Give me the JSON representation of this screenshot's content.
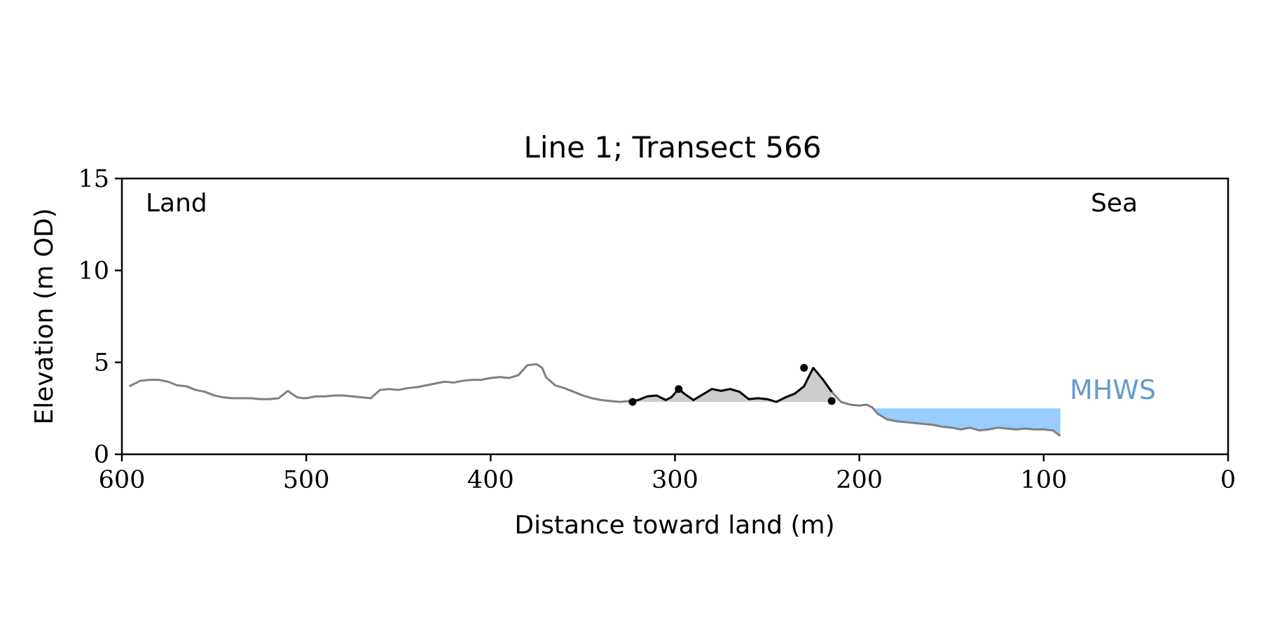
{
  "chart_data": {
    "type": "line",
    "title": "Line 1; Transect 566",
    "xlabel": "Distance toward land (m)",
    "ylabel": "Elevation (m OD)",
    "xlim": [
      600,
      0
    ],
    "ylim": [
      0,
      15
    ],
    "xticks": [
      600,
      500,
      400,
      300,
      200,
      100,
      0
    ],
    "yticks": [
      0,
      5,
      10,
      15
    ],
    "grid": false,
    "annotations": {
      "land": "Land",
      "sea": "Sea",
      "mhws": "MHWS"
    },
    "mhws_level": 2.5,
    "mhws_range": [
      192,
      91
    ],
    "colors": {
      "profile": "#808080",
      "dune": "#000000",
      "dune_fill": "#cccccc",
      "mhws_fill": "#99ccff",
      "mhws_text": "#6699cc"
    },
    "series": [
      {
        "x": [
          596,
          590,
          585,
          580,
          575,
          570,
          565,
          560,
          555,
          550,
          545,
          540,
          535,
          530,
          525,
          520,
          515,
          510,
          505,
          502,
          500,
          495,
          490,
          485,
          480,
          475,
          470,
          465,
          460,
          455,
          450,
          445,
          440,
          435,
          430,
          425,
          420,
          415,
          410,
          405,
          400,
          395,
          390,
          385,
          380,
          375,
          372,
          370,
          365,
          360,
          355,
          350,
          345,
          340,
          335,
          330,
          325,
          323,
          320,
          315,
          310,
          305,
          302,
          298,
          295,
          290,
          285,
          280,
          275,
          270,
          265,
          260,
          255,
          250,
          245,
          240,
          235,
          230,
          225,
          220,
          215,
          210,
          205,
          200,
          196,
          193,
          190,
          185,
          180,
          175,
          170,
          165,
          160,
          155,
          150,
          145,
          140,
          135,
          130,
          125,
          120,
          115,
          110,
          105,
          100,
          95,
          91
        ],
        "y": [
          3.7,
          4.0,
          4.05,
          4.05,
          3.95,
          3.75,
          3.7,
          3.5,
          3.4,
          3.2,
          3.1,
          3.05,
          3.05,
          3.05,
          3.0,
          3.0,
          3.05,
          3.45,
          3.1,
          3.05,
          3.05,
          3.15,
          3.15,
          3.2,
          3.2,
          3.15,
          3.1,
          3.05,
          3.5,
          3.55,
          3.5,
          3.6,
          3.65,
          3.75,
          3.85,
          3.95,
          3.9,
          4.0,
          4.05,
          4.05,
          4.15,
          4.2,
          4.15,
          4.3,
          4.85,
          4.9,
          4.7,
          4.2,
          3.75,
          3.6,
          3.4,
          3.2,
          3.05,
          2.95,
          2.9,
          2.85,
          2.9,
          2.9,
          2.95,
          3.15,
          3.2,
          2.95,
          3.1,
          3.55,
          3.3,
          2.95,
          3.25,
          3.55,
          3.45,
          3.55,
          3.4,
          3.0,
          3.05,
          3.0,
          2.85,
          3.1,
          3.3,
          3.7,
          4.7,
          4.1,
          3.4,
          2.85,
          2.7,
          2.65,
          2.7,
          2.55,
          2.2,
          1.9,
          1.8,
          1.75,
          1.7,
          1.65,
          1.6,
          1.5,
          1.45,
          1.35,
          1.45,
          1.3,
          1.35,
          1.45,
          1.4,
          1.35,
          1.4,
          1.35,
          1.35,
          1.3,
          1.0
        ]
      }
    ],
    "dune": {
      "base": 2.85,
      "points": [
        {
          "x": 323,
          "y": 2.85
        },
        {
          "x": 298,
          "y": 3.55
        },
        {
          "x": 230,
          "y": 4.7
        },
        {
          "x": 215,
          "y": 2.9
        }
      ]
    }
  }
}
